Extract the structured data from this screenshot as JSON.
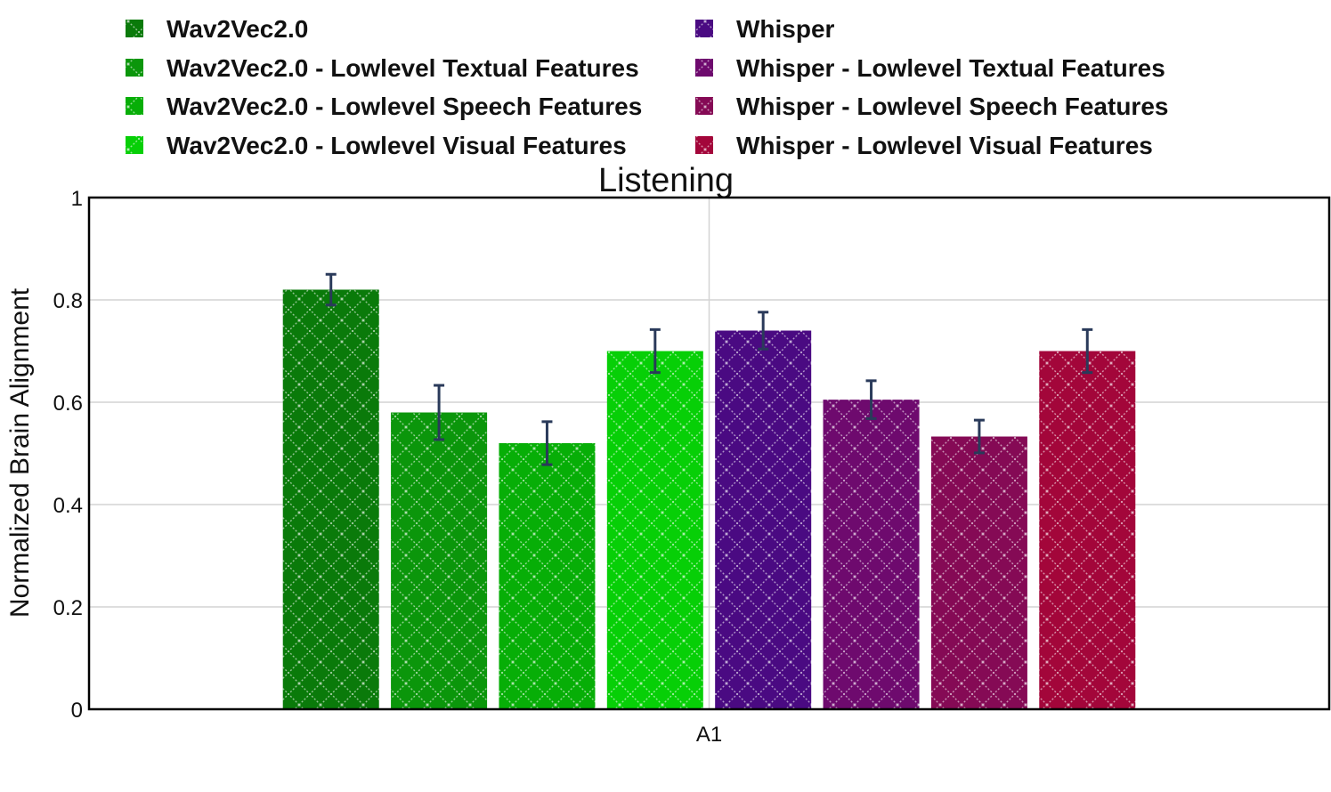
{
  "chart_data": {
    "type": "bar",
    "title": "Listening",
    "xlabel": "",
    "ylabel": "Normalized Brain Alignment",
    "categories": [
      "A1"
    ],
    "ylim": [
      0,
      1
    ],
    "yticks": [
      "0",
      "0.2",
      "0.4",
      "0.6",
      "0.8",
      "1"
    ],
    "grid": true,
    "legend_position": "top",
    "series": [
      {
        "name": "Wav2Vec2.0",
        "values": [
          0.82
        ],
        "error": [
          0.03
        ],
        "color": "#0a7a0a"
      },
      {
        "name": "Wav2Vec2.0 - Lowlevel Textual Features",
        "values": [
          0.58
        ],
        "error": [
          0.053
        ],
        "color": "#0b960b"
      },
      {
        "name": "Wav2Vec2.0 - Lowlevel Speech Features",
        "values": [
          0.52
        ],
        "error": [
          0.042
        ],
        "color": "#07ae07"
      },
      {
        "name": "Wav2Vec2.0 - Lowlevel Visual Features",
        "values": [
          0.7
        ],
        "error": [
          0.042
        ],
        "color": "#07cf07"
      },
      {
        "name": "Whisper",
        "values": [
          0.74
        ],
        "error": [
          0.036
        ],
        "color": "#4a0a82"
      },
      {
        "name": "Whisper - Lowlevel Textual Features",
        "values": [
          0.605
        ],
        "error": [
          0.037
        ],
        "color": "#6e0a6e"
      },
      {
        "name": "Whisper - Lowlevel Speech Features",
        "values": [
          0.533
        ],
        "error": [
          0.032
        ],
        "color": "#850a55"
      },
      {
        "name": "Whisper - Lowlevel Visual Features",
        "values": [
          0.7
        ],
        "error": [
          0.042
        ],
        "color": "#a3063a"
      }
    ],
    "error_bar_color": "#2a3a5a"
  }
}
